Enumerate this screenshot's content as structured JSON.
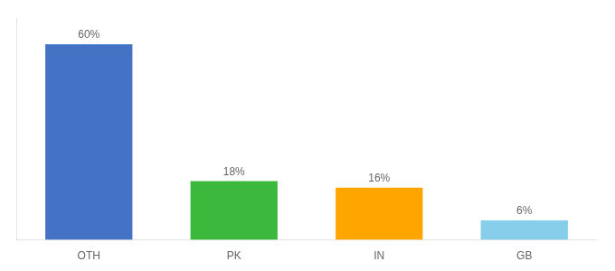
{
  "chart_data": {
    "type": "bar",
    "categories": [
      "OTH",
      "PK",
      "IN",
      "GB"
    ],
    "values": [
      60,
      18,
      16,
      6
    ],
    "value_labels": [
      "60%",
      "18%",
      "16%",
      "6%"
    ],
    "colors": [
      "#4472C4",
      "#3CB83C",
      "#FFA500",
      "#87CEEB"
    ],
    "ylim": [
      0,
      68
    ],
    "grid": false,
    "data_labels": true,
    "tick_labels": "x"
  }
}
